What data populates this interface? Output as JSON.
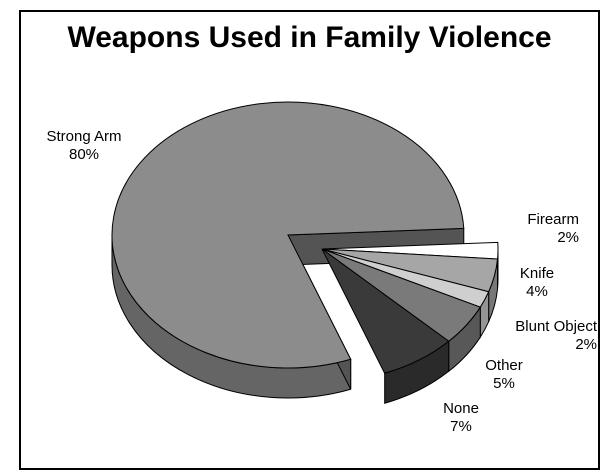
{
  "chart_data": {
    "type": "pie",
    "title": "Weapons Used in Family Violence",
    "slices": [
      {
        "label": "Firearm",
        "value": 2,
        "value_label": "2%",
        "color": "#ffffff"
      },
      {
        "label": "Knife",
        "value": 4,
        "value_label": "4%",
        "color": "#a6a6a6"
      },
      {
        "label": "Blunt Object",
        "value": 2,
        "value_label": "2%",
        "color": "#cfcfcf"
      },
      {
        "label": "Other",
        "value": 5,
        "value_label": "5%",
        "color": "#7a7a7a"
      },
      {
        "label": "None",
        "value": 7,
        "value_label": "7%",
        "color": "#3a3a3a"
      },
      {
        "label": "Strong Arm",
        "value": 80,
        "value_label": "80%",
        "color": "#8c8c8c"
      }
    ],
    "style": "3d-exploded"
  }
}
